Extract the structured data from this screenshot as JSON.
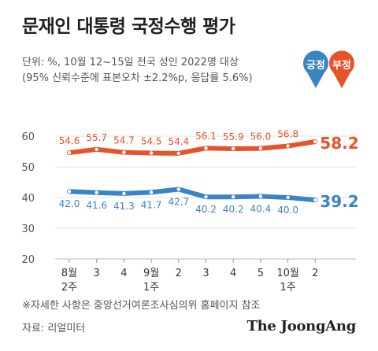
{
  "title": "문재인 대통령 국정수행 평가",
  "subtitle_line1": "단위: %, 10월 12~15일 전국 성인 2022명 대상",
  "subtitle_line2": "(95% 신뢰수준에 표본오차 ±2.2%p, 응답률 5.6%)",
  "legend": {
    "positive": {
      "label": "긍정",
      "color": "#3a84c4"
    },
    "negative": {
      "label": "부정",
      "color": "#e8522a"
    }
  },
  "footnote": "※자세한 사항은 중앙선거여론조사심의위 홈페이지 참조",
  "source": "자료: 리얼미터",
  "brand": "The JoongAng",
  "chart_data": {
    "type": "line",
    "categories": [
      {
        "line1": "8월",
        "line2": "2주"
      },
      {
        "line1": "3",
        "line2": ""
      },
      {
        "line1": "4",
        "line2": ""
      },
      {
        "line1": "9월",
        "line2": "1주"
      },
      {
        "line1": "2",
        "line2": ""
      },
      {
        "line1": "3",
        "line2": ""
      },
      {
        "line1": "4",
        "line2": ""
      },
      {
        "line1": "5",
        "line2": ""
      },
      {
        "line1": "10월",
        "line2": "1주"
      },
      {
        "line1": "2",
        "line2": ""
      }
    ],
    "series": [
      {
        "name": "부정",
        "color": "#e8522a",
        "values": [
          54.6,
          55.7,
          54.7,
          54.5,
          54.4,
          56.1,
          55.9,
          56.0,
          56.8,
          58.2
        ]
      },
      {
        "name": "긍정",
        "color": "#3a84c4",
        "values": [
          42.0,
          41.6,
          41.3,
          41.7,
          42.7,
          40.2,
          40.2,
          40.4,
          40.0,
          39.2
        ]
      }
    ],
    "yticks": [
      20,
      30,
      40,
      50,
      60
    ],
    "ylim": [
      20,
      62
    ],
    "grid": true
  }
}
